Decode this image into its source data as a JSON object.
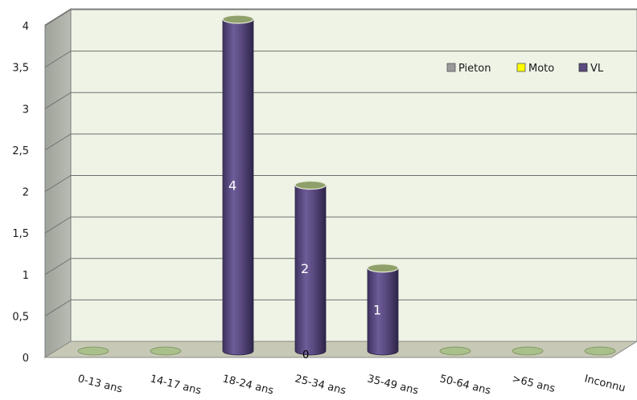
{
  "chart_data": {
    "type": "bar",
    "title": "",
    "xlabel": "",
    "ylabel": "",
    "categories": [
      "0-13 ans",
      "14-17 ans",
      "18-24 ans",
      "25-34 ans",
      "35-49 ans",
      "50-64 ans",
      ">65 ans",
      "Inconnu"
    ],
    "series": [
      {
        "name": "Pieton",
        "values": [
          0,
          0,
          0,
          0,
          0,
          0,
          0,
          0
        ]
      },
      {
        "name": "Moto",
        "values": [
          0,
          0,
          0,
          0,
          0,
          0,
          0,
          0
        ]
      },
      {
        "name": "VL",
        "values": [
          0,
          0,
          4,
          2,
          1,
          0,
          0,
          0
        ]
      }
    ],
    "data_labels": {
      "2": "4",
      "3": "2",
      "4": "1"
    },
    "extra_label": "0",
    "ylim": [
      0,
      4
    ],
    "yticks": [
      "0",
      "0,5",
      "1",
      "1,5",
      "2",
      "2,5",
      "3",
      "3,5",
      "4"
    ],
    "grid": true,
    "legend_position": "top-right",
    "colors": {
      "Pieton": "#9a9a9a",
      "Moto": "#ffff00",
      "VL": "#5a4a80",
      "wall": "#eef3e6",
      "floor": "#c7c9b6",
      "base": "#a9c08a"
    }
  }
}
